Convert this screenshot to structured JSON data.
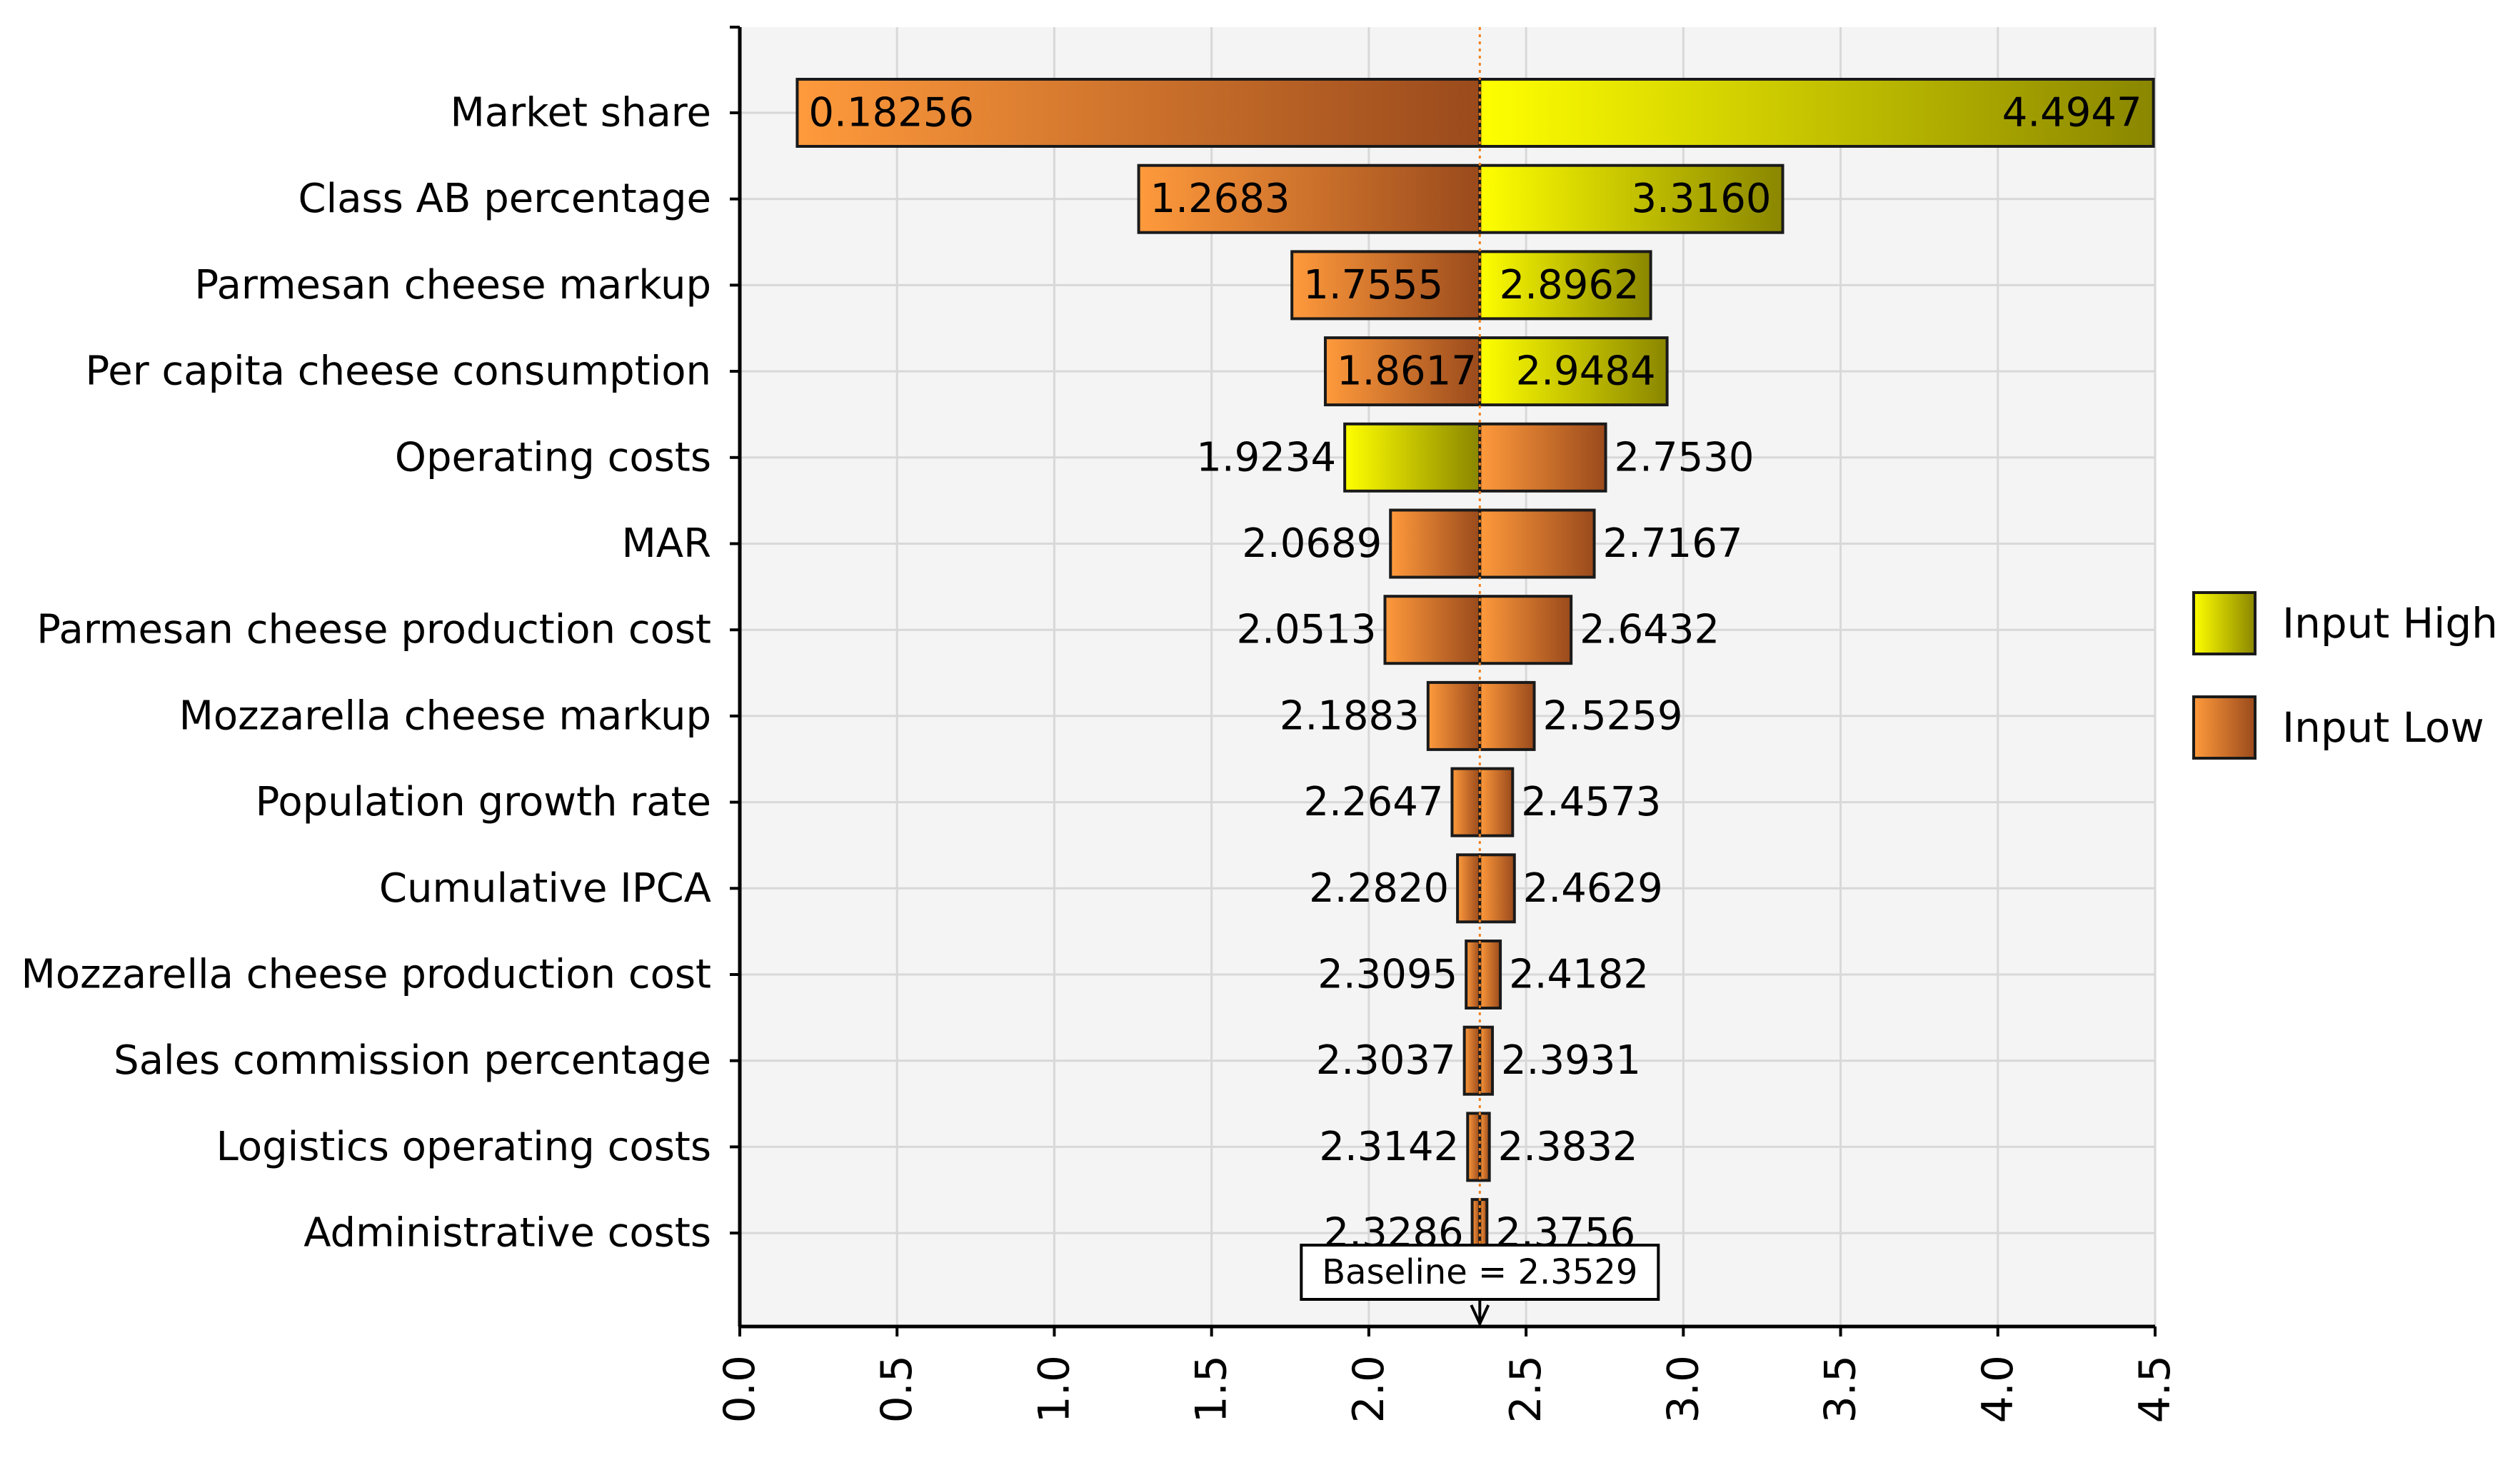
{
  "chart_data": {
    "type": "tornado",
    "title": "",
    "xlabel": "",
    "ylabel": "",
    "xlim": [
      0,
      4.5
    ],
    "x_ticks": [
      "0.0",
      "0.5",
      "1.0",
      "1.5",
      "2.0",
      "2.5",
      "3.0",
      "3.5",
      "4.0",
      "4.5"
    ],
    "baseline": 2.3529,
    "baseline_label": "Baseline = 2.3529",
    "legend": {
      "position": "right",
      "entries": [
        {
          "name": "Input High",
          "color": "#d8d800"
        },
        {
          "name": "Input Low",
          "color": "#e07a30"
        }
      ]
    },
    "colors": {
      "high_light": "#ffff00",
      "high_dark": "#8a8600",
      "low_light": "#ff9a3c",
      "low_dark": "#9a4a1c",
      "baseline_line": "#f08020",
      "plot_bg": "#f4f4f4",
      "grid": "#d8d8d8"
    },
    "rows": [
      {
        "label": "Market share",
        "left": "0.18256",
        "right": "4.4947",
        "left_value": 0.18256,
        "right_value": 4.4947,
        "left_input": "low",
        "right_input": "high",
        "labels_inside": true
      },
      {
        "label": "Class AB percentage",
        "left": "1.2683",
        "right": "3.3160",
        "left_value": 1.2683,
        "right_value": 3.316,
        "left_input": "low",
        "right_input": "high",
        "labels_inside": true
      },
      {
        "label": "Parmesan cheese markup",
        "left": "1.7555",
        "right": "2.8962",
        "left_value": 1.7555,
        "right_value": 2.8962,
        "left_input": "low",
        "right_input": "high",
        "labels_inside": true
      },
      {
        "label": "Per capita cheese consumption",
        "left": "1.8617",
        "right": "2.9484",
        "left_value": 1.8617,
        "right_value": 2.9484,
        "left_input": "low",
        "right_input": "high",
        "labels_inside": true
      },
      {
        "label": "Operating costs",
        "left": "1.9234",
        "right": "2.7530",
        "left_value": 1.9234,
        "right_value": 2.753,
        "left_input": "high",
        "right_input": "low",
        "labels_inside": false
      },
      {
        "label": "MAR",
        "left": "2.0689",
        "right": "2.7167",
        "left_value": 2.0689,
        "right_value": 2.7167,
        "left_input": "low",
        "right_input": "low",
        "labels_inside": false
      },
      {
        "label": "Parmesan cheese production cost",
        "left": "2.0513",
        "right": "2.6432",
        "left_value": 2.0513,
        "right_value": 2.6432,
        "left_input": "low",
        "right_input": "low",
        "labels_inside": false
      },
      {
        "label": "Mozzarella cheese markup",
        "left": "2.1883",
        "right": "2.5259",
        "left_value": 2.1883,
        "right_value": 2.5259,
        "left_input": "low",
        "right_input": "low",
        "labels_inside": false
      },
      {
        "label": "Population growth rate",
        "left": "2.2647",
        "right": "2.4573",
        "left_value": 2.2647,
        "right_value": 2.4573,
        "left_input": "low",
        "right_input": "low",
        "labels_inside": false
      },
      {
        "label": "Cumulative IPCA",
        "left": "2.2820",
        "right": "2.4629",
        "left_value": 2.282,
        "right_value": 2.4629,
        "left_input": "low",
        "right_input": "low",
        "labels_inside": false
      },
      {
        "label": "Mozzarella cheese production cost",
        "left": "2.3095",
        "right": "2.4182",
        "left_value": 2.3095,
        "right_value": 2.4182,
        "left_input": "low",
        "right_input": "low",
        "labels_inside": false
      },
      {
        "label": "Sales commission percentage",
        "left": "2.3037",
        "right": "2.3931",
        "left_value": 2.3037,
        "right_value": 2.3931,
        "left_input": "low",
        "right_input": "low",
        "labels_inside": false
      },
      {
        "label": "Logistics operating costs",
        "left": "2.3142",
        "right": "2.3832",
        "left_value": 2.3142,
        "right_value": 2.3832,
        "left_input": "low",
        "right_input": "low",
        "labels_inside": false
      },
      {
        "label": "Administrative costs",
        "left": "2.3286",
        "right": "2.3756",
        "left_value": 2.3286,
        "right_value": 2.3756,
        "left_input": "low",
        "right_input": "low",
        "labels_inside": false
      }
    ]
  }
}
